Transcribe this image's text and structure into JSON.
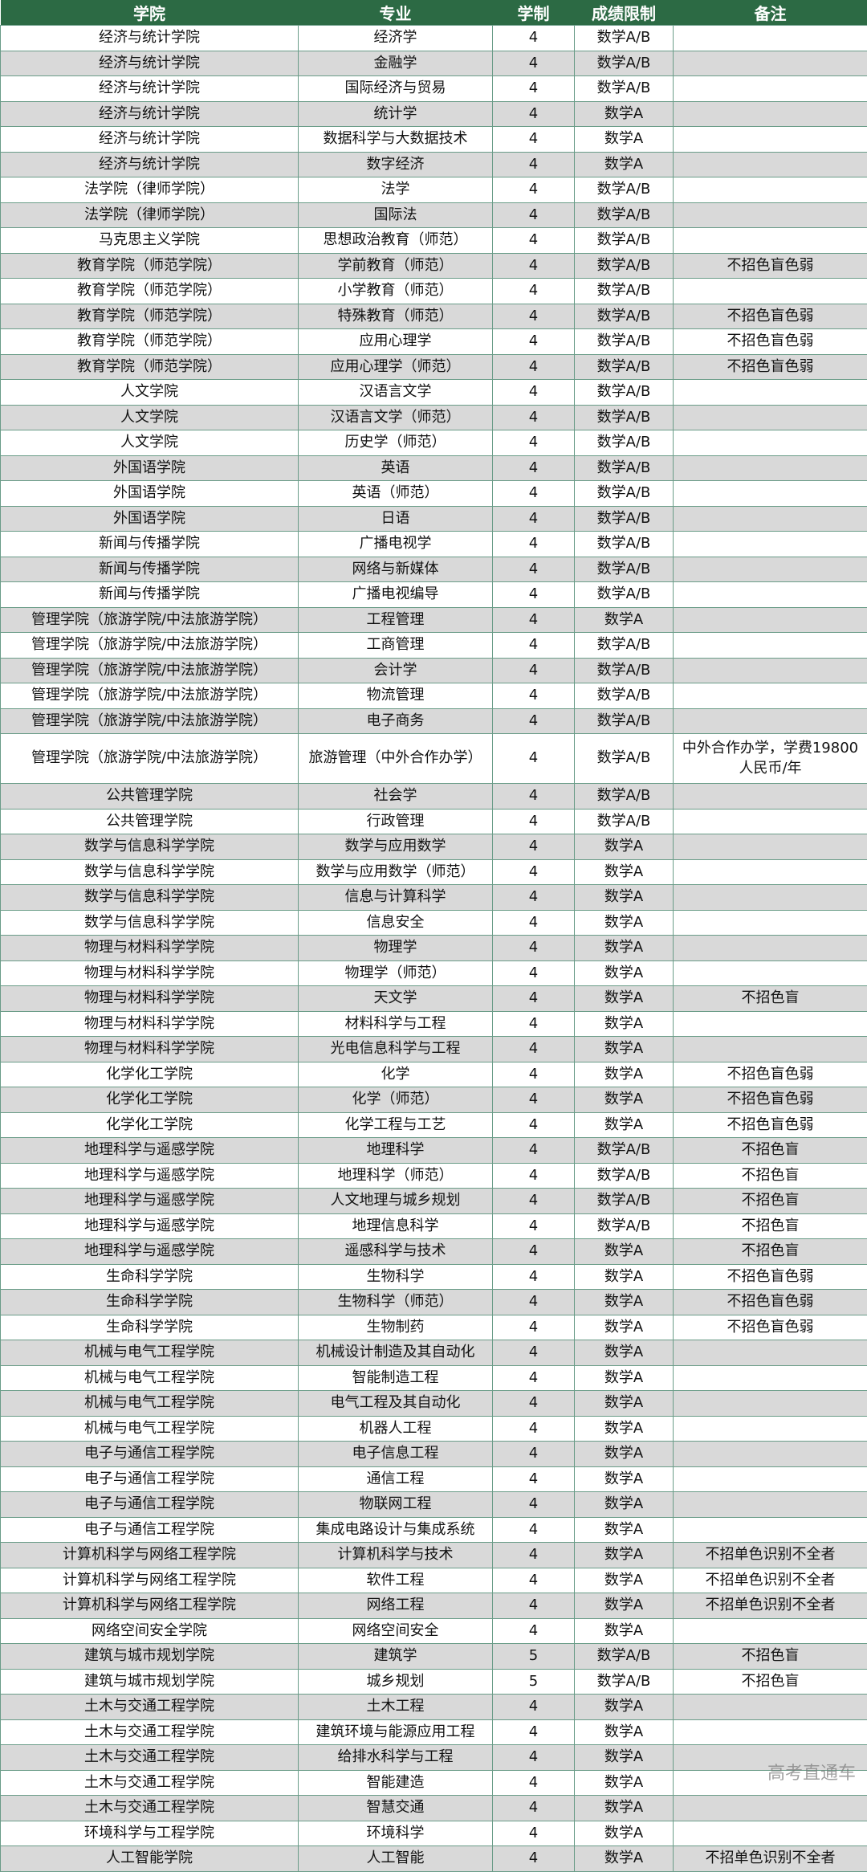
{
  "headers": [
    "学院",
    "专业",
    "学制",
    "成绩限制",
    "备注"
  ],
  "rows": [
    [
      "经济与统计学院",
      "经济学",
      "4",
      "数学A/B",
      ""
    ],
    [
      "经济与统计学院",
      "金融学",
      "4",
      "数学A/B",
      ""
    ],
    [
      "经济与统计学院",
      "国际经济与贸易",
      "4",
      "数学A/B",
      ""
    ],
    [
      "经济与统计学院",
      "统计学",
      "4",
      "数学A",
      ""
    ],
    [
      "经济与统计学院",
      "数据科学与大数据技术",
      "4",
      "数学A",
      ""
    ],
    [
      "经济与统计学院",
      "数字经济",
      "4",
      "数学A",
      ""
    ],
    [
      "法学院（律师学院）",
      "法学",
      "4",
      "数学A/B",
      ""
    ],
    [
      "法学院（律师学院）",
      "国际法",
      "4",
      "数学A/B",
      ""
    ],
    [
      "马克思主义学院",
      "思想政治教育（师范）",
      "4",
      "数学A/B",
      ""
    ],
    [
      "教育学院（师范学院）",
      "学前教育（师范）",
      "4",
      "数学A/B",
      "不招色盲色弱"
    ],
    [
      "教育学院（师范学院）",
      "小学教育（师范）",
      "4",
      "数学A/B",
      ""
    ],
    [
      "教育学院（师范学院）",
      "特殊教育（师范）",
      "4",
      "数学A/B",
      "不招色盲色弱"
    ],
    [
      "教育学院（师范学院）",
      "应用心理学",
      "4",
      "数学A/B",
      "不招色盲色弱"
    ],
    [
      "教育学院（师范学院）",
      "应用心理学（师范）",
      "4",
      "数学A/B",
      "不招色盲色弱"
    ],
    [
      "人文学院",
      "汉语言文学",
      "4",
      "数学A/B",
      ""
    ],
    [
      "人文学院",
      "汉语言文学（师范）",
      "4",
      "数学A/B",
      ""
    ],
    [
      "人文学院",
      "历史学（师范）",
      "4",
      "数学A/B",
      ""
    ],
    [
      "外国语学院",
      "英语",
      "4",
      "数学A/B",
      ""
    ],
    [
      "外国语学院",
      "英语（师范）",
      "4",
      "数学A/B",
      ""
    ],
    [
      "外国语学院",
      "日语",
      "4",
      "数学A/B",
      ""
    ],
    [
      "新闻与传播学院",
      "广播电视学",
      "4",
      "数学A/B",
      ""
    ],
    [
      "新闻与传播学院",
      "网络与新媒体",
      "4",
      "数学A/B",
      ""
    ],
    [
      "新闻与传播学院",
      "广播电视编导",
      "4",
      "数学A/B",
      ""
    ],
    [
      "管理学院（旅游学院/中法旅游学院）",
      "工程管理",
      "4",
      "数学A",
      ""
    ],
    [
      "管理学院（旅游学院/中法旅游学院）",
      "工商管理",
      "4",
      "数学A/B",
      ""
    ],
    [
      "管理学院（旅游学院/中法旅游学院）",
      "会计学",
      "4",
      "数学A/B",
      ""
    ],
    [
      "管理学院（旅游学院/中法旅游学院）",
      "物流管理",
      "4",
      "数学A/B",
      ""
    ],
    [
      "管理学院（旅游学院/中法旅游学院）",
      "电子商务",
      "4",
      "数学A/B",
      ""
    ],
    [
      "管理学院（旅游学院/中法旅游学院）",
      "旅游管理（中外合作办学）",
      "4",
      "数学A/B",
      "中外合作办学，学费19800人民币/年"
    ],
    [
      "公共管理学院",
      "社会学",
      "4",
      "数学A/B",
      ""
    ],
    [
      "公共管理学院",
      "行政管理",
      "4",
      "数学A/B",
      ""
    ],
    [
      "数学与信息科学学院",
      "数学与应用数学",
      "4",
      "数学A",
      ""
    ],
    [
      "数学与信息科学学院",
      "数学与应用数学（师范）",
      "4",
      "数学A",
      ""
    ],
    [
      "数学与信息科学学院",
      "信息与计算科学",
      "4",
      "数学A",
      ""
    ],
    [
      "数学与信息科学学院",
      "信息安全",
      "4",
      "数学A",
      ""
    ],
    [
      "物理与材料科学学院",
      "物理学",
      "4",
      "数学A",
      ""
    ],
    [
      "物理与材料科学学院",
      "物理学（师范）",
      "4",
      "数学A",
      ""
    ],
    [
      "物理与材料科学学院",
      "天文学",
      "4",
      "数学A",
      "不招色盲"
    ],
    [
      "物理与材料科学学院",
      "材料科学与工程",
      "4",
      "数学A",
      ""
    ],
    [
      "物理与材料科学学院",
      "光电信息科学与工程",
      "4",
      "数学A",
      ""
    ],
    [
      "化学化工学院",
      "化学",
      "4",
      "数学A",
      "不招色盲色弱"
    ],
    [
      "化学化工学院",
      "化学（师范）",
      "4",
      "数学A",
      "不招色盲色弱"
    ],
    [
      "化学化工学院",
      "化学工程与工艺",
      "4",
      "数学A",
      "不招色盲色弱"
    ],
    [
      "地理科学与遥感学院",
      "地理科学",
      "4",
      "数学A/B",
      "不招色盲"
    ],
    [
      "地理科学与遥感学院",
      "地理科学（师范）",
      "4",
      "数学A/B",
      "不招色盲"
    ],
    [
      "地理科学与遥感学院",
      "人文地理与城乡规划",
      "4",
      "数学A/B",
      "不招色盲"
    ],
    [
      "地理科学与遥感学院",
      "地理信息科学",
      "4",
      "数学A/B",
      "不招色盲"
    ],
    [
      "地理科学与遥感学院",
      "遥感科学与技术",
      "4",
      "数学A",
      "不招色盲"
    ],
    [
      "生命科学学院",
      "生物科学",
      "4",
      "数学A",
      "不招色盲色弱"
    ],
    [
      "生命科学学院",
      "生物科学（师范）",
      "4",
      "数学A",
      "不招色盲色弱"
    ],
    [
      "生命科学学院",
      "生物制药",
      "4",
      "数学A",
      "不招色盲色弱"
    ],
    [
      "机械与电气工程学院",
      "机械设计制造及其自动化",
      "4",
      "数学A",
      ""
    ],
    [
      "机械与电气工程学院",
      "智能制造工程",
      "4",
      "数学A",
      ""
    ],
    [
      "机械与电气工程学院",
      "电气工程及其自动化",
      "4",
      "数学A",
      ""
    ],
    [
      "机械与电气工程学院",
      "机器人工程",
      "4",
      "数学A",
      ""
    ],
    [
      "电子与通信工程学院",
      "电子信息工程",
      "4",
      "数学A",
      ""
    ],
    [
      "电子与通信工程学院",
      "通信工程",
      "4",
      "数学A",
      ""
    ],
    [
      "电子与通信工程学院",
      "物联网工程",
      "4",
      "数学A",
      ""
    ],
    [
      "电子与通信工程学院",
      "集成电路设计与集成系统",
      "4",
      "数学A",
      ""
    ],
    [
      "计算机科学与网络工程学院",
      "计算机科学与技术",
      "4",
      "数学A",
      "不招单色识别不全者"
    ],
    [
      "计算机科学与网络工程学院",
      "软件工程",
      "4",
      "数学A",
      "不招单色识别不全者"
    ],
    [
      "计算机科学与网络工程学院",
      "网络工程",
      "4",
      "数学A",
      "不招单色识别不全者"
    ],
    [
      "网络空间安全学院",
      "网络空间安全",
      "4",
      "数学A",
      ""
    ],
    [
      "建筑与城市规划学院",
      "建筑学",
      "5",
      "数学A/B",
      "不招色盲"
    ],
    [
      "建筑与城市规划学院",
      "城乡规划",
      "5",
      "数学A/B",
      "不招色盲"
    ],
    [
      "土木与交通工程学院",
      "土木工程",
      "4",
      "数学A",
      ""
    ],
    [
      "土木与交通工程学院",
      "建筑环境与能源应用工程",
      "4",
      "数学A",
      ""
    ],
    [
      "土木与交通工程学院",
      "给排水科学与工程",
      "4",
      "数学A",
      ""
    ],
    [
      "土木与交通工程学院",
      "智能建造",
      "4",
      "数学A",
      ""
    ],
    [
      "土木与交通工程学院",
      "智慧交通",
      "4",
      "数学A",
      ""
    ],
    [
      "环境科学与工程学院",
      "环境科学",
      "4",
      "数学A",
      ""
    ],
    [
      "人工智能学院",
      "人工智能",
      "4",
      "数学A",
      "不招单色识别不全者"
    ]
  ],
  "watermark": "高考直通车",
  "colors": {
    "header_bg": "#2c6a44",
    "stripe": "#d9d9d9",
    "border": "#6a9c88"
  }
}
